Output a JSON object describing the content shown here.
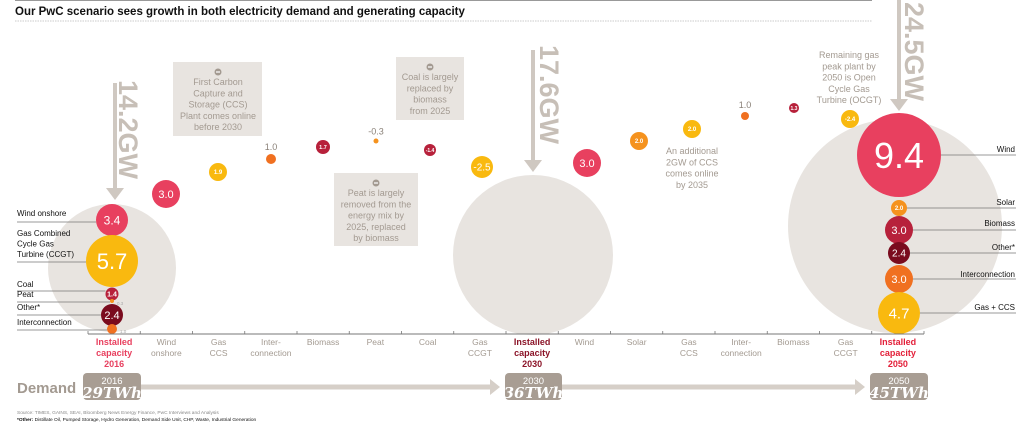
{
  "title": "Our PwC scenario sees growth in both electricity demand and generating capacity",
  "colors": {
    "wind": "#e8405f",
    "gas": "#f9b90f",
    "interconnection": "#f07020",
    "solar": "#f5921e",
    "coal_biomass": "#b7213b",
    "other": "#7a0b1e",
    "capacity_circle": "#e8e4e0",
    "muted_text": "#a39a91",
    "installed_2016": "#e8405f",
    "installed_2030": "#8b1428",
    "installed_2050": "#e3203a"
  },
  "chart_data": {
    "type": "bubble-waterfall",
    "title": "Our PwC scenario sees growth in both electricity demand and generating capacity",
    "unit": "GW",
    "categories": [
      [
        "Installed",
        "capacity",
        "2016"
      ],
      [
        "Wind",
        "onshore"
      ],
      [
        "Gas",
        "CCS"
      ],
      [
        "Inter-",
        "connection"
      ],
      [
        "Biomass"
      ],
      [
        "Peat"
      ],
      [
        "Coal"
      ],
      [
        "Gas",
        "CCGT"
      ],
      [
        "Installed",
        "capacity",
        "2030"
      ],
      [
        "Wind"
      ],
      [
        "Solar"
      ],
      [
        "Gas",
        "CCS"
      ],
      [
        "Inter-",
        "connection"
      ],
      [
        "Biomass"
      ],
      [
        "Gas",
        "CCGT"
      ],
      [
        "Installed",
        "capacity",
        "2050"
      ]
    ],
    "totals": [
      {
        "year": "2016",
        "label": "14.2GW",
        "value": 14.2
      },
      {
        "year": "2030",
        "label": "17.6GW",
        "value": 17.6
      },
      {
        "year": "2050",
        "label": "24.5GW",
        "value": 24.5
      }
    ],
    "installed_2016": [
      {
        "source": [
          "Wind onshore"
        ],
        "value": "3.4",
        "color": "wind"
      },
      {
        "source": [
          "Gas Combined",
          "Cycle Gas",
          "Turbine (CCGT)"
        ],
        "value": "5.7",
        "color": "gas"
      },
      {
        "source": [
          "Coal"
        ],
        "value": "1.4",
        "color": "coal_biomass"
      },
      {
        "source": [
          "Peat"
        ],
        "value": "0.3",
        "color": "solar"
      },
      {
        "source": [
          "Other*"
        ],
        "value": "2.4",
        "color": "other"
      },
      {
        "source": [
          "Interconnection"
        ],
        "value": "1.0",
        "color": "interconnection"
      }
    ],
    "changes_2016_2030": [
      {
        "category": "Wind onshore",
        "value": "3.0",
        "color": "wind"
      },
      {
        "category": "Gas CCS",
        "value": "1.9",
        "color": "gas"
      },
      {
        "category": "Interconnection",
        "value": "1.0",
        "color": "interconnection"
      },
      {
        "category": "Biomass",
        "value": "1.7",
        "color": "coal_biomass"
      },
      {
        "category": "Peat",
        "value": "-0.3",
        "color": "solar"
      },
      {
        "category": "Coal",
        "value": "-1.4",
        "color": "coal_biomass"
      },
      {
        "category": "Gas CCGT",
        "value": "-2.5",
        "color": "gas"
      }
    ],
    "changes_2030_2050": [
      {
        "category": "Wind",
        "value": "3.0",
        "color": "wind"
      },
      {
        "category": "Solar",
        "value": "2.0",
        "color": "solar"
      },
      {
        "category": "Gas CCS",
        "value": "2.0",
        "color": "gas"
      },
      {
        "category": "Interconnection",
        "value": "1.0",
        "color": "interconnection"
      },
      {
        "category": "Biomass",
        "value": "1.3",
        "color": "coal_biomass"
      },
      {
        "category": "Gas CCGT",
        "value": "-2.4",
        "color": "gas"
      }
    ],
    "installed_2050": [
      {
        "source": [
          "Wind"
        ],
        "value": "9.4",
        "color": "wind"
      },
      {
        "source": [
          "Solar"
        ],
        "value": "2.0",
        "color": "solar"
      },
      {
        "source": [
          "Biomass"
        ],
        "value": "3.0",
        "color": "coal_biomass"
      },
      {
        "source": [
          "Other*"
        ],
        "value": "2.4",
        "color": "other"
      },
      {
        "source": [
          "Interconnection"
        ],
        "value": "3.0",
        "color": "interconnection"
      },
      {
        "source": [
          "Gas + CCS"
        ],
        "value": "4.7",
        "color": "gas"
      }
    ]
  },
  "notes": {
    "ccs": [
      "First Carbon",
      "Capture and",
      "Storage (CCS)",
      "Plant comes online",
      "before 2030"
    ],
    "coal": [
      "Coal is largely",
      "replaced by",
      "biomass",
      "from 2025"
    ],
    "peat": [
      "Peat is largely",
      "removed from the",
      "energy mix by",
      "2025, replaced",
      "by biomass"
    ],
    "ccs2035": [
      "An additional",
      "2GW of CCS",
      "comes online",
      "by 2035"
    ],
    "ocgt": [
      "Remaining gas",
      "peak plant by",
      "2050 is Open",
      "Cycle Gas",
      "Turbine (OCGT)"
    ]
  },
  "demand": {
    "label": "Demand",
    "points": [
      {
        "year": "2016",
        "value": "29TWh"
      },
      {
        "year": "2030",
        "value": "36TWh"
      },
      {
        "year": "2050",
        "value": "45TWh"
      }
    ]
  },
  "source": "Source: TIMES, GAINS, SEAI, Bloomberg News Energy Finance, PwC Interviews and Analysis",
  "footnote_label": "*Other:",
  "footnote": " Distillate Oil, Pumped Storage, Hydro Generation, Demand Side Unit, CHP, Waste, Industrial Generation"
}
